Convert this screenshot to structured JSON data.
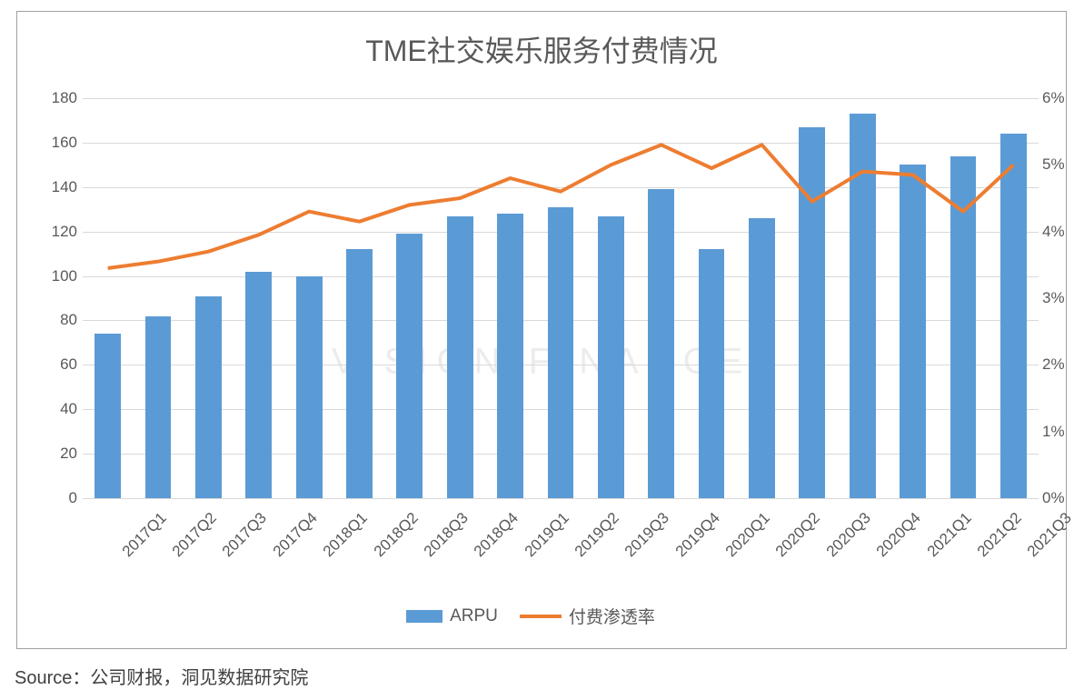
{
  "title": "TME社交娱乐服务付费情况",
  "source": "Source：公司财报，洞见数据研究院",
  "watermark": "VISION FINANCE",
  "chart": {
    "type": "bar+line",
    "categories": [
      "2017Q1",
      "2017Q2",
      "2017Q3",
      "2017Q4",
      "2018Q1",
      "2018Q2",
      "2018Q3",
      "2018Q4",
      "2019Q1",
      "2019Q2",
      "2019Q3",
      "2019Q4",
      "2020Q1",
      "2020Q2",
      "2020Q3",
      "2020Q4",
      "2021Q1",
      "2021Q2",
      "2021Q3"
    ],
    "bar": {
      "name": "ARPU",
      "values": [
        74,
        82,
        91,
        102,
        100,
        112,
        119,
        127,
        128,
        131,
        127,
        139,
        112,
        126,
        167,
        173,
        150,
        154,
        164
      ],
      "color": "#5b9bd5",
      "width_ratio": 0.52
    },
    "line": {
      "name": "付费渗透率",
      "values_pct": [
        3.45,
        3.55,
        3.7,
        3.95,
        4.3,
        4.15,
        4.4,
        4.5,
        4.8,
        4.6,
        5.0,
        5.3,
        4.95,
        5.3,
        4.45,
        4.9,
        4.85,
        4.3,
        5.0
      ],
      "color": "#ed7d31",
      "width": 4
    },
    "y_left": {
      "min": 0,
      "max": 180,
      "step": 20
    },
    "y_right": {
      "min": 0,
      "max": 6,
      "step": 1,
      "suffix": "%"
    },
    "grid_color": "#d9d9d9",
    "axis_color": "#595959",
    "background": "#ffffff",
    "label_fontsize": 17,
    "title_fontsize": 32,
    "x_label_rotation": -45
  },
  "legend": {
    "items": [
      {
        "type": "bar",
        "label": "ARPU",
        "color": "#5b9bd5"
      },
      {
        "type": "line",
        "label": "付费渗透率",
        "color": "#ed7d31"
      }
    ]
  }
}
